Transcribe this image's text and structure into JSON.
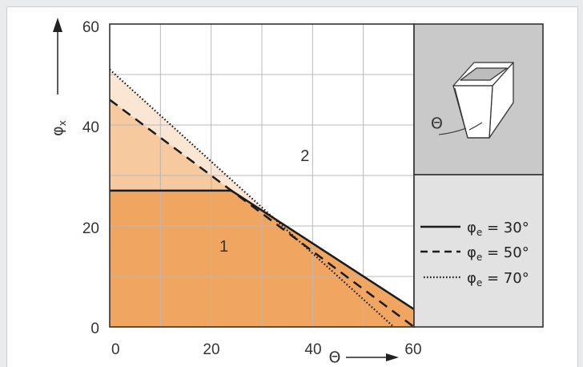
{
  "chart_data": {
    "type": "area",
    "xlabel": "Θ",
    "ylabel": "φ",
    "ylabel_sub": "x",
    "xlim": [
      0,
      60
    ],
    "ylim": [
      0,
      60
    ],
    "x_ticks": [
      "0",
      "20",
      "40",
      "60"
    ],
    "y_ticks": [
      "0",
      "20",
      "40",
      "60"
    ],
    "grid": true,
    "legend_position": "right",
    "series": [
      {
        "name": "φe = 30°",
        "label_main": "φ",
        "label_sub": "e",
        "label_value": " = 30°",
        "style": "solid",
        "x": [
          0,
          24,
          60
        ],
        "y": [
          27,
          27,
          3.5
        ]
      },
      {
        "name": "φe = 50°",
        "label_main": "φ",
        "label_sub": "e",
        "label_value": " = 50°",
        "style": "dashed",
        "x": [
          0,
          60
        ],
        "y": [
          45,
          0
        ]
      },
      {
        "name": "φe = 70°",
        "label_main": "φ",
        "label_sub": "e",
        "label_value": " = 70°",
        "style": "dotted",
        "x": [
          0,
          56
        ],
        "y": [
          51,
          0
        ]
      }
    ],
    "region_labels": [
      {
        "text": "1",
        "x": 22.5,
        "y": 16
      },
      {
        "text": "2",
        "x": 38.5,
        "y": 34
      }
    ],
    "inset": {
      "angle_label": "Θ",
      "icon": "hopper-icon"
    },
    "colors": {
      "region_dark": "#f0a661",
      "region_mid": "#f6c99f",
      "region_light": "#fbe6d3",
      "grid": "#b8b8b8",
      "panel": "#c9c9c9",
      "legend_panel": "#e2e2e2",
      "line": "#1b1b1b"
    }
  }
}
